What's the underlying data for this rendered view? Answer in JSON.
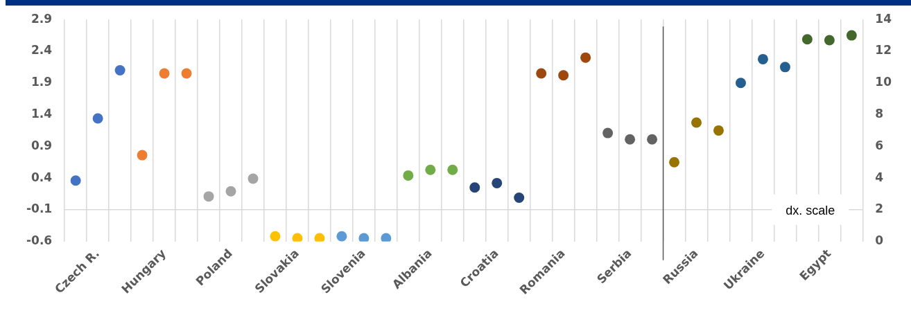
{
  "chart_data": {
    "type": "scatter",
    "categories": [
      null,
      "Czech R.",
      null,
      null,
      "Hungary",
      null,
      null,
      "Poland",
      null,
      null,
      "Slovakia",
      null,
      null,
      "Slovenia",
      null,
      null,
      "Albania",
      null,
      null,
      "Croatia",
      null,
      null,
      "Romania",
      null,
      null,
      "Serbia",
      null,
      null,
      "Russia",
      null,
      null,
      "Ukraine",
      null,
      null,
      "Egypt",
      null
    ],
    "series": [
      {
        "color": "#4472c4",
        "values": [
          0.36,
          1.34,
          2.1,
          null,
          null,
          null,
          null,
          null,
          null,
          null,
          null,
          null,
          null,
          null,
          null,
          null,
          null,
          null,
          null,
          null,
          null,
          null,
          null,
          null,
          null,
          null,
          null,
          null,
          null,
          null,
          null,
          null,
          null,
          null,
          null,
          null
        ]
      },
      {
        "color": "#ed7d31",
        "values": [
          null,
          null,
          null,
          0.76,
          2.05,
          2.05,
          null,
          null,
          null,
          null,
          null,
          null,
          null,
          null,
          null,
          null,
          null,
          null,
          null,
          null,
          null,
          null,
          null,
          null,
          null,
          null,
          null,
          null,
          null,
          null,
          null,
          null,
          null,
          null,
          null,
          null
        ]
      },
      {
        "color": "#a5a5a5",
        "values": [
          null,
          null,
          null,
          null,
          null,
          null,
          0.11,
          0.19,
          0.39,
          null,
          null,
          null,
          null,
          null,
          null,
          null,
          null,
          null,
          null,
          null,
          null,
          null,
          null,
          null,
          null,
          null,
          null,
          null,
          null,
          null,
          null,
          null,
          null,
          null,
          null,
          null
        ]
      },
      {
        "color": "#ffc000",
        "values": [
          null,
          null,
          null,
          null,
          null,
          null,
          null,
          null,
          null,
          -0.52,
          -0.55,
          -0.55,
          null,
          null,
          null,
          null,
          null,
          null,
          null,
          null,
          null,
          null,
          null,
          null,
          null,
          null,
          null,
          null,
          null,
          null,
          null,
          null,
          null,
          null,
          null,
          null
        ]
      },
      {
        "color": "#5b9bd5",
        "values": [
          null,
          null,
          null,
          null,
          null,
          null,
          null,
          null,
          null,
          null,
          null,
          null,
          -0.52,
          -0.55,
          -0.55,
          null,
          null,
          null,
          null,
          null,
          null,
          null,
          null,
          null,
          null,
          null,
          null,
          null,
          null,
          null,
          null,
          null,
          null,
          null,
          null,
          null
        ]
      },
      {
        "color": "#70ad47",
        "values": [
          null,
          null,
          null,
          null,
          null,
          null,
          null,
          null,
          null,
          null,
          null,
          null,
          null,
          null,
          null,
          0.44,
          0.53,
          0.53,
          null,
          null,
          null,
          null,
          null,
          null,
          null,
          null,
          null,
          null,
          null,
          null,
          null,
          null,
          null,
          null,
          null,
          null
        ]
      },
      {
        "color": "#264478",
        "values": [
          null,
          null,
          null,
          null,
          null,
          null,
          null,
          null,
          null,
          null,
          null,
          null,
          null,
          null,
          null,
          null,
          null,
          null,
          0.25,
          0.32,
          0.09,
          null,
          null,
          null,
          null,
          null,
          null,
          null,
          null,
          null,
          null,
          null,
          null,
          null,
          null,
          null
        ]
      },
      {
        "color": "#9e480e",
        "values": [
          null,
          null,
          null,
          null,
          null,
          null,
          null,
          null,
          null,
          null,
          null,
          null,
          null,
          null,
          null,
          null,
          null,
          null,
          null,
          null,
          null,
          2.05,
          2.02,
          2.3,
          null,
          null,
          null,
          null,
          null,
          null,
          null,
          null,
          null,
          null,
          null,
          null
        ]
      },
      {
        "color": "#636363",
        "values": [
          null,
          null,
          null,
          null,
          null,
          null,
          null,
          null,
          null,
          null,
          null,
          null,
          null,
          null,
          null,
          null,
          null,
          null,
          null,
          null,
          null,
          null,
          null,
          null,
          1.11,
          1.01,
          1.01,
          null,
          null,
          null,
          null,
          null,
          null,
          null,
          null,
          null
        ]
      },
      {
        "color": "#997300",
        "axis": "y2",
        "values": [
          null,
          null,
          null,
          null,
          null,
          null,
          null,
          null,
          null,
          null,
          null,
          null,
          null,
          null,
          null,
          null,
          null,
          null,
          null,
          null,
          null,
          null,
          null,
          null,
          null,
          null,
          null,
          5.0,
          7.5,
          7.0,
          null,
          null,
          null,
          null,
          null,
          null
        ]
      },
      {
        "color": "#255e91",
        "axis": "y2",
        "values": [
          null,
          null,
          null,
          null,
          null,
          null,
          null,
          null,
          null,
          null,
          null,
          null,
          null,
          null,
          null,
          null,
          null,
          null,
          null,
          null,
          null,
          null,
          null,
          null,
          null,
          null,
          null,
          null,
          null,
          null,
          10.0,
          11.5,
          11.0,
          null,
          null,
          null
        ]
      },
      {
        "color": "#43682b",
        "axis": "y2",
        "values": [
          null,
          null,
          null,
          null,
          null,
          null,
          null,
          null,
          null,
          null,
          null,
          null,
          null,
          null,
          null,
          null,
          null,
          null,
          null,
          null,
          null,
          null,
          null,
          null,
          null,
          null,
          null,
          null,
          null,
          null,
          null,
          null,
          null,
          12.75,
          12.7,
          13.0
        ]
      }
    ],
    "ylim": [
      -0.6,
      2.9
    ],
    "yticks": [
      -0.6,
      -0.1,
      0.4,
      0.9,
      1.4,
      1.9,
      2.4,
      2.9
    ],
    "y2lim": [
      0,
      14
    ],
    "y2ticks": [
      0,
      2,
      4,
      6,
      8,
      10,
      12,
      14
    ],
    "ref_lines": [
      {
        "axis": "y",
        "value": -0.1,
        "color": "#d9d9d9"
      }
    ],
    "annotations": [
      "dx. scale"
    ],
    "grid": "x",
    "legend": false,
    "marker": "circle"
  }
}
